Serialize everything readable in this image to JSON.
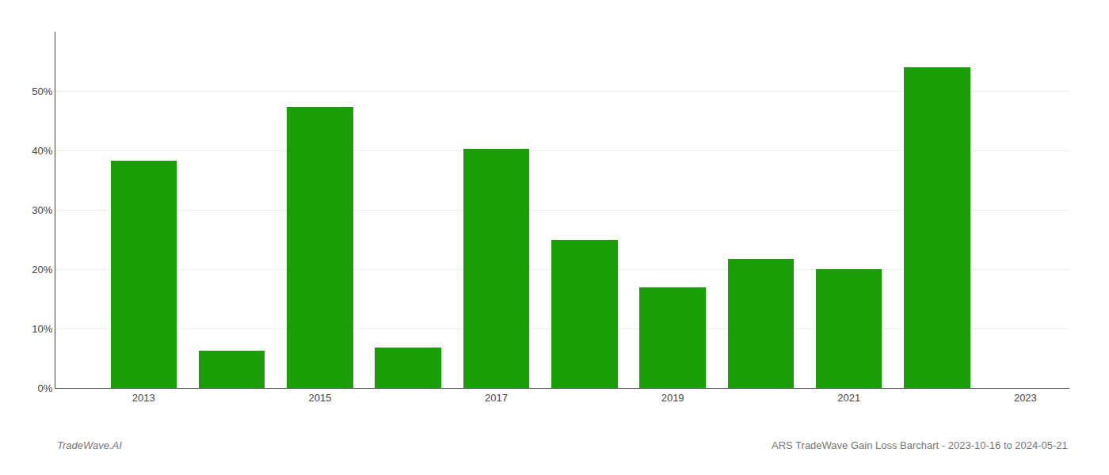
{
  "chart_data": {
    "type": "bar",
    "x": [
      2013,
      2014,
      2015,
      2016,
      2017,
      2018,
      2019,
      2020,
      2021,
      2022
    ],
    "values": [
      0.383,
      0.063,
      0.473,
      0.068,
      0.403,
      0.25,
      0.17,
      0.217,
      0.2,
      0.54
    ],
    "color": "#1a9e06",
    "xlim": [
      2012.0,
      2023.5
    ],
    "xticks": [
      2013,
      2015,
      2017,
      2019,
      2021,
      2023
    ],
    "ylim": [
      0,
      0.6
    ],
    "yticks": [
      {
        "value": 0.0,
        "label": "0%"
      },
      {
        "value": 0.1,
        "label": "10%"
      },
      {
        "value": 0.2,
        "label": "20%"
      },
      {
        "value": 0.3,
        "label": "30%"
      },
      {
        "value": 0.4,
        "label": "40%"
      },
      {
        "value": 0.5,
        "label": "50%"
      }
    ],
    "grid": true,
    "annotations": [
      "TradeWave.AI",
      "ARS TradeWave Gain Loss Barchart - 2023-10-16 to 2024-05-21"
    ]
  }
}
